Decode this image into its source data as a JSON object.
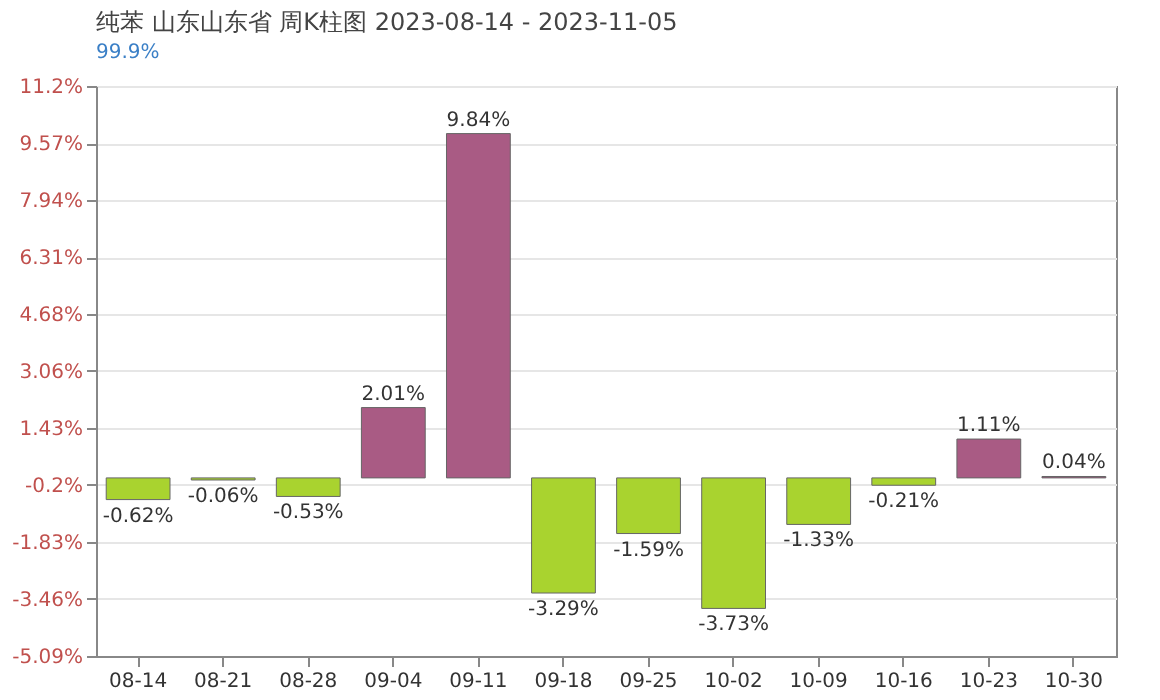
{
  "chart_data": {
    "type": "bar",
    "title": "纯苯 山东山东省 周K柱图 2023-08-14 - 2023-11-05",
    "subtitle": "99.9%",
    "categories": [
      "08-14",
      "08-21",
      "08-28",
      "09-04",
      "09-11",
      "09-18",
      "09-25",
      "10-02",
      "10-09",
      "10-16",
      "10-23",
      "10-30"
    ],
    "values": [
      -0.62,
      -0.06,
      -0.53,
      2.01,
      9.84,
      -3.29,
      -1.59,
      -3.73,
      -1.33,
      -0.21,
      1.11,
      0.04
    ],
    "colors": [
      "#a9d32f",
      "#a9d32f",
      "#a9d32f",
      "#a95b84",
      "#a95b84",
      "#a9d32f",
      "#a9d32f",
      "#a9d32f",
      "#a9d32f",
      "#a9d32f",
      "#a95b84",
      "#a95b84"
    ],
    "value_labels": [
      "-0.62%",
      "-0.06%",
      "-0.53%",
      "2.01%",
      "9.84%",
      "-3.29%",
      "-1.59%",
      "-3.73%",
      "-1.33%",
      "-0.21%",
      "1.11%",
      "0.04%"
    ],
    "ylim": [
      -5.09,
      11.2
    ],
    "yticks": [
      {
        "value": 11.2,
        "label": "11.2%"
      },
      {
        "value": 9.57,
        "label": "9.57%"
      },
      {
        "value": 7.94,
        "label": "7.94%"
      },
      {
        "value": 6.31,
        "label": "6.31%"
      },
      {
        "value": 4.68,
        "label": "4.68%"
      },
      {
        "value": 3.06,
        "label": "3.06%"
      },
      {
        "value": 1.43,
        "label": "1.43%"
      },
      {
        "value": -0.2,
        "label": "-0.2%"
      },
      {
        "value": -1.83,
        "label": "-1.83%"
      },
      {
        "value": -3.46,
        "label": "-3.46%"
      },
      {
        "value": -5.09,
        "label": "-5.09%"
      }
    ],
    "grid": "y"
  }
}
